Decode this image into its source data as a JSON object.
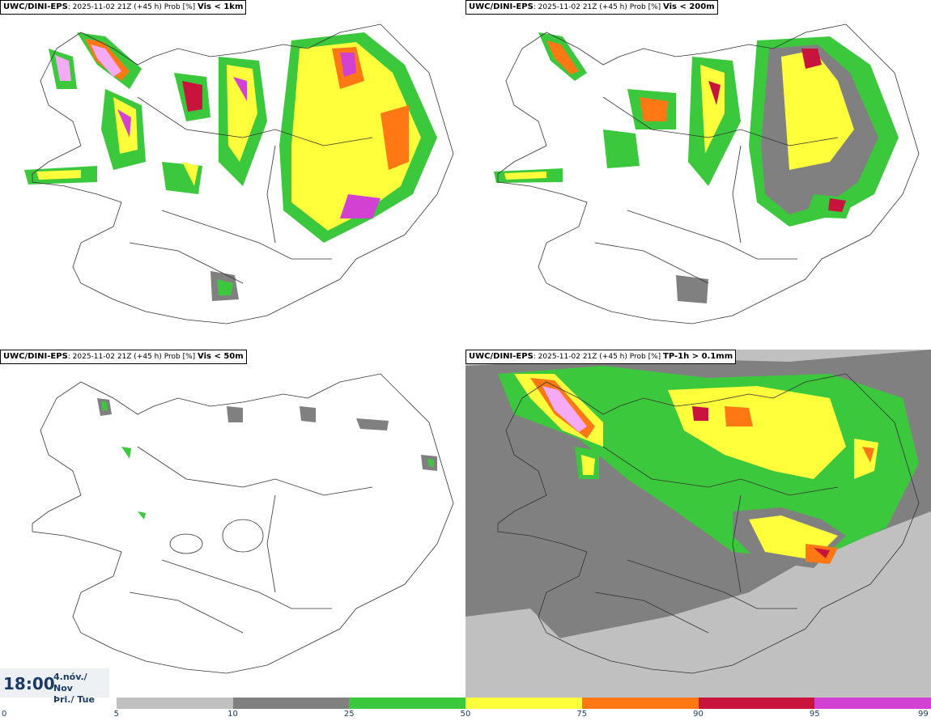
{
  "panels": [
    {
      "model": "UWC/DINI-EPS",
      "run": ": 2025-11-02 21Z (+45 h) Prob [%]",
      "variable": "Vis < 1km"
    },
    {
      "model": "UWC/DINI-EPS",
      "run": ": 2025-11-02 21Z (+45 h) Prob [%]",
      "variable": "Vis < 200m"
    },
    {
      "model": "UWC/DINI-EPS",
      "run": ": 2025-11-02 21Z (+45 h) Prob [%]",
      "variable": "Vis < 50m"
    },
    {
      "model": "UWC/DINI-EPS",
      "run": ": 2025-11-02 21Z (+45 h) Prob [%]",
      "variable": "TP-1h > 0.1mm"
    }
  ],
  "valid": {
    "time": "18:00",
    "date_line1": "4.nóv./ Nov",
    "date_line2": "Þri./ Tue"
  },
  "colorbar": {
    "ticks": [
      "0",
      "5",
      "10",
      "25",
      "50",
      "75",
      "90",
      "95",
      "99"
    ],
    "colors": [
      "#c0c0c0",
      "#808080",
      "#3cc83c",
      "#ffff3c",
      "#ff7814",
      "#c8143c",
      "#d241d2",
      "#f5aaf5"
    ]
  }
}
